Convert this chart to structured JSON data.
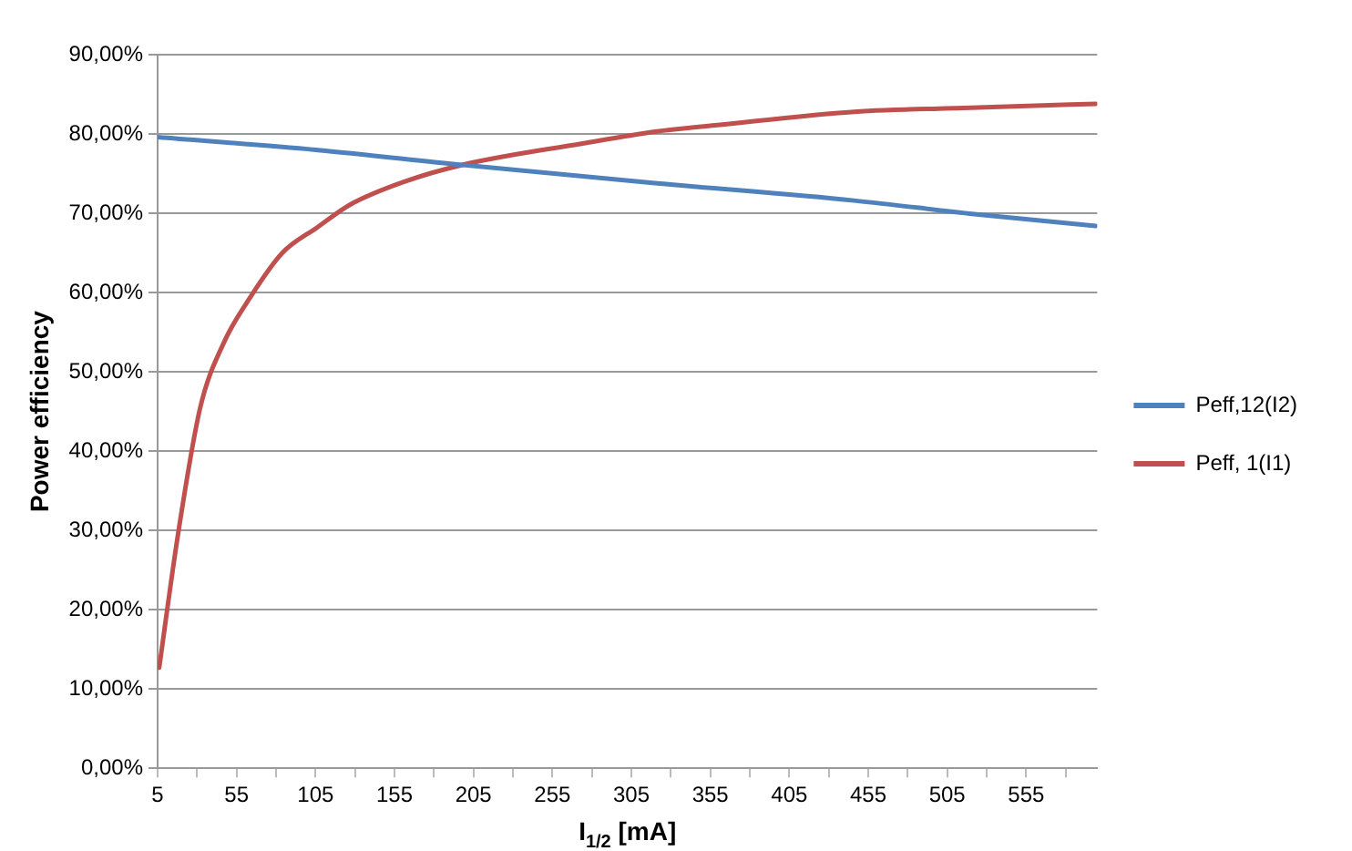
{
  "chart_data": {
    "type": "line",
    "xlabel": "I$_{1/2}$ [mA]",
    "ylabel": "Power efficiency",
    "xlim": [
      5,
      600
    ],
    "xticks": [
      5,
      {
        "value": 30,
        "label": null
      },
      55,
      {
        "value": 80,
        "label": null
      },
      105,
      {
        "value": 130,
        "label": null
      },
      155,
      {
        "value": 180,
        "label": null
      },
      205,
      {
        "value": 230,
        "label": null
      },
      255,
      {
        "value": 280,
        "label": null
      },
      305,
      {
        "value": 330,
        "label": null
      },
      355,
      {
        "value": 380,
        "label": null
      },
      405,
      {
        "value": 430,
        "label": null
      },
      455,
      {
        "value": 480,
        "label": null
      },
      505,
      {
        "value": 530,
        "label": null
      },
      555,
      {
        "value": 580,
        "label": null
      }
    ],
    "ylim": [
      0,
      90
    ],
    "yticks": [
      {
        "value": 0,
        "label": "0,00%"
      },
      {
        "value": 10,
        "label": "10,00%"
      },
      {
        "value": 20,
        "label": "20,00%"
      },
      {
        "value": 30,
        "label": "30,00%"
      },
      {
        "value": 40,
        "label": "40,00%"
      },
      {
        "value": 50,
        "label": "50,00%"
      },
      {
        "value": 60,
        "label": "60,00%"
      },
      {
        "value": 70,
        "label": "70,00%"
      },
      {
        "value": 80,
        "label": "80,00%"
      },
      {
        "value": 90,
        "label": "90,00%"
      }
    ],
    "grid": "y",
    "legend": "right",
    "marker": "none",
    "line_style": "solid",
    "series": [
      {
        "name": "Peff,12(I2)",
        "color": "#4f81bd",
        "x": [
          5,
          105,
          198,
          320,
          446,
          522,
          599
        ],
        "values": [
          79.6,
          78,
          76.1,
          73.8,
          71.6,
          69.9,
          68.4
        ]
      },
      {
        "name": "Peff, 1(I1)",
        "color": "#c0504d",
        "x": [
          6,
          18,
          32,
          47,
          64,
          84,
          106,
          127,
          160,
          198,
          274,
          320,
          358,
          446,
          520,
          599
        ],
        "values": [
          12.7,
          29.6,
          45.5,
          53.7,
          59.5,
          65,
          68.2,
          71.1,
          73.9,
          76.1,
          78.8,
          80.3,
          81.1,
          82.8,
          83.3,
          83.8
        ]
      }
    ]
  }
}
